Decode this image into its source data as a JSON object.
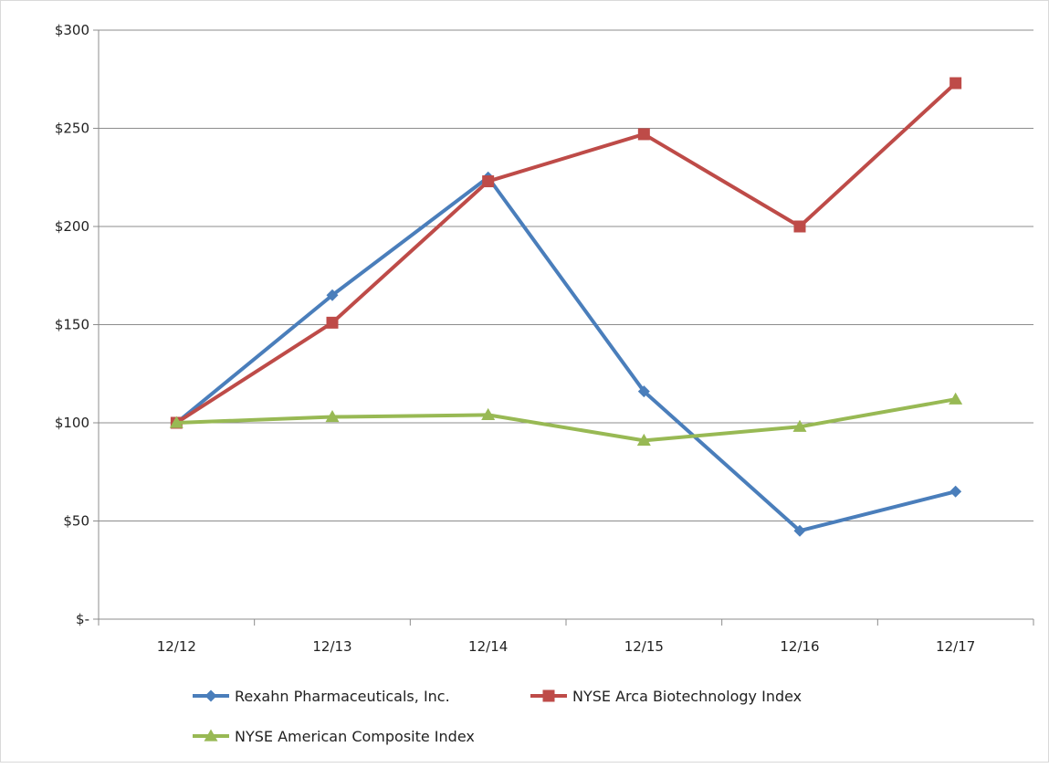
{
  "chart_data": {
    "type": "line",
    "title": "",
    "xlabel": "",
    "ylabel": "",
    "categories": [
      "12/12",
      "12/13",
      "12/14",
      "12/15",
      "12/16",
      "12/17"
    ],
    "ylim": [
      0,
      300
    ],
    "yticks": [
      0,
      50,
      100,
      150,
      200,
      250,
      300
    ],
    "ytick_labels": [
      "$-",
      "$50",
      "$100",
      "$150",
      "$200",
      "$250",
      "$300"
    ],
    "grid": true,
    "legend_position": "bottom",
    "series": [
      {
        "name": "Rexahn Pharmaceuticals, Inc.",
        "color": "#4a7ebb",
        "marker": "diamond",
        "values": [
          100,
          165,
          225,
          116,
          45,
          65
        ]
      },
      {
        "name": "NYSE Arca Biotechnology Index",
        "color": "#be4b48",
        "marker": "square",
        "values": [
          100,
          151,
          223,
          247,
          200,
          273
        ]
      },
      {
        "name": "NYSE American Composite Index",
        "color": "#98b954",
        "marker": "triangle",
        "values": [
          100,
          103,
          104,
          91,
          98,
          112
        ]
      }
    ]
  }
}
